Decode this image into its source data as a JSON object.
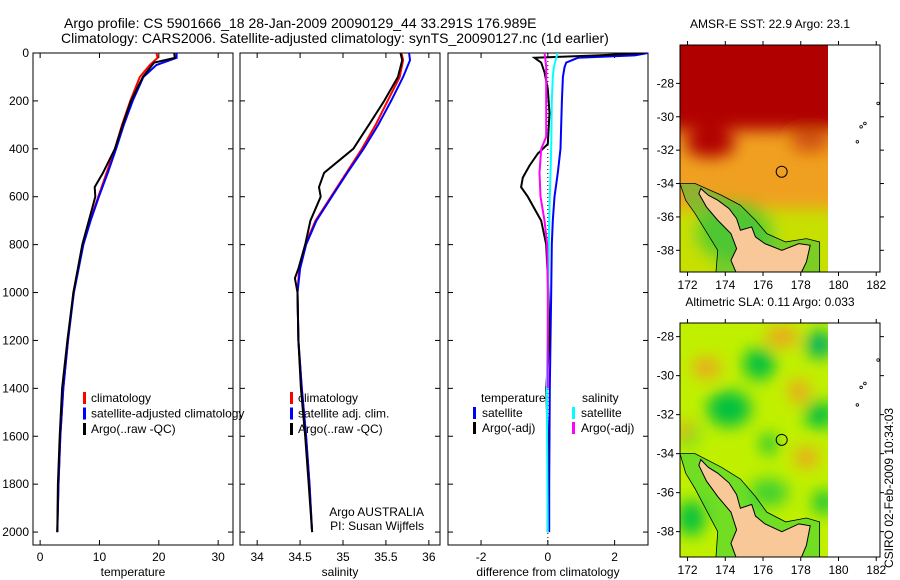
{
  "title": {
    "line1": "Argo profile: CS 5901666_18 28-Jan-2009 20090129_44 33.291S 176.989E",
    "line2": "Climatology: CARS2006. Satellite-adjusted climatology: synTS_20090127.nc (1d earlier)"
  },
  "chart_data": [
    {
      "type": "line",
      "xlabel": "temperature",
      "xlim": [
        -1.2,
        32.5
      ],
      "ylim": [
        0,
        2054
      ],
      "yreversed": true,
      "xticks": [
        0,
        10,
        20,
        30
      ],
      "yticks": [
        0,
        200,
        400,
        600,
        800,
        1000,
        1200,
        1400,
        1600,
        1800,
        2000
      ],
      "legend": [
        "climatology",
        "satellite-adjusted climatology",
        "Argo(..raw -QC)"
      ],
      "series": [
        {
          "name": "climatology",
          "color": "#ff0000",
          "depth": [
            0,
            20,
            50,
            100,
            200,
            300,
            400,
            500,
            600,
            700,
            800,
            1000,
            1200,
            1400,
            1600,
            1800,
            2000
          ],
          "values": [
            19.6,
            19.8,
            18.5,
            16.8,
            15.2,
            13.8,
            12.6,
            11.2,
            9.8,
            8.4,
            7.2,
            5.6,
            4.7,
            3.9,
            3.4,
            3.1,
            2.9
          ]
        },
        {
          "name": "satellite-adjusted climatology",
          "color": "#0000ff",
          "depth": [
            0,
            20,
            50,
            100,
            200,
            300,
            400,
            500,
            600,
            700,
            800,
            1000,
            1200,
            1400,
            1600,
            1800,
            2000
          ],
          "values": [
            23.0,
            23.0,
            19.6,
            17.4,
            15.6,
            14.1,
            12.8,
            11.4,
            9.9,
            8.5,
            7.3,
            5.7,
            4.7,
            3.9,
            3.4,
            3.1,
            2.9
          ]
        },
        {
          "name": "Argo(..raw -QC)",
          "color": "#000000",
          "depth": [
            0,
            20,
            40,
            100,
            200,
            300,
            400,
            500,
            560,
            600,
            700,
            800,
            1000,
            1200,
            1400,
            1600,
            1800,
            2000
          ],
          "values": [
            22.6,
            22.7,
            19.2,
            17.3,
            15.3,
            13.9,
            12.6,
            10.6,
            9.2,
            9.3,
            8.2,
            7.1,
            5.6,
            4.6,
            3.7,
            3.3,
            3.0,
            2.9
          ]
        }
      ]
    },
    {
      "type": "line",
      "xlabel": "salinity",
      "xlim": [
        33.8,
        36.13
      ],
      "ylim": [
        0,
        2054
      ],
      "yreversed": true,
      "xticks": [
        34,
        34.5,
        35,
        35.5,
        36
      ],
      "xticklabels": [
        "34",
        "34.5",
        "35",
        "35.5",
        "36"
      ],
      "legend": [
        "climatology",
        "satellite adj. clim.",
        "Argo(..raw -QC)"
      ],
      "annotation": [
        "Argo AUSTRALIA",
        "PI: Susan Wijffels"
      ],
      "series": [
        {
          "name": "climatology",
          "color": "#ff0000",
          "depth": [
            0,
            30,
            100,
            200,
            300,
            400,
            500,
            600,
            700,
            800,
            900,
            1000,
            1200,
            1400,
            1600,
            1800,
            2000
          ],
          "values": [
            35.68,
            35.7,
            35.66,
            35.52,
            35.38,
            35.22,
            35.04,
            34.86,
            34.68,
            34.56,
            34.49,
            34.47,
            34.48,
            34.52,
            34.57,
            34.61,
            34.64
          ]
        },
        {
          "name": "satellite adj. clim.",
          "color": "#0000ff",
          "depth": [
            0,
            30,
            100,
            200,
            300,
            400,
            500,
            600,
            700,
            800,
            900,
            1000,
            1200,
            1400,
            1600,
            1800,
            2000
          ],
          "values": [
            35.77,
            35.78,
            35.7,
            35.56,
            35.41,
            35.24,
            35.05,
            34.87,
            34.69,
            34.57,
            34.5,
            34.47,
            34.48,
            34.52,
            34.57,
            34.61,
            34.64
          ]
        },
        {
          "name": "Argo(..raw -QC)",
          "color": "#000000",
          "depth": [
            0,
            30,
            100,
            200,
            300,
            400,
            450,
            500,
            560,
            600,
            700,
            800,
            900,
            940,
            1000,
            1200,
            1400,
            1600,
            1800,
            2000
          ],
          "values": [
            35.67,
            35.69,
            35.64,
            35.48,
            35.3,
            35.12,
            34.95,
            34.78,
            34.72,
            34.74,
            34.62,
            34.56,
            34.48,
            34.44,
            34.47,
            34.48,
            34.51,
            34.56,
            34.6,
            34.64
          ]
        }
      ]
    },
    {
      "type": "line",
      "xlabel": "difference from climatology",
      "xlim": [
        -2.99,
        3.0
      ],
      "ylim": [
        0,
        2054
      ],
      "yreversed": true,
      "xticks": [
        -2,
        0,
        2
      ],
      "legend_headers": [
        "temperature",
        "salinity"
      ],
      "legend": [
        "satellite",
        "Argo(-adj)",
        "satellite",
        "Argo(-adj)"
      ],
      "series": [
        {
          "name": "temperature satellite",
          "color": "#0000ff",
          "depth": [
            0,
            10,
            20,
            40,
            60,
            100,
            200,
            300,
            400,
            500,
            600,
            700,
            800,
            1000,
            1200,
            1400,
            1600,
            1800,
            2000
          ],
          "values": [
            3.0,
            2.6,
            0.9,
            0.55,
            0.5,
            0.45,
            0.42,
            0.4,
            0.38,
            0.3,
            0.2,
            0.15,
            0.12,
            0.1,
            0.08,
            0.06,
            0.05,
            0.04,
            0.04
          ]
        },
        {
          "name": "temperature Argo(-adj)",
          "color": "#000000",
          "depth": [
            0,
            10,
            20,
            40,
            80,
            150,
            250,
            380,
            420,
            470,
            520,
            560,
            600,
            650,
            700,
            800,
            1000,
            1200,
            1400,
            1600,
            1800,
            2000
          ],
          "values": [
            2.9,
            1.5,
            -0.4,
            -0.2,
            -0.1,
            0.0,
            0.05,
            0.0,
            -0.3,
            -0.55,
            -0.75,
            -0.8,
            -0.6,
            -0.4,
            -0.2,
            -0.05,
            0.02,
            0.05,
            -0.05,
            0.0,
            0.0,
            0.0
          ]
        },
        {
          "name": "salinity satellite",
          "color": "#00ffff",
          "depth": [
            0,
            20,
            60,
            100,
            200,
            400,
            600,
            800,
            1000,
            1400,
            2000
          ],
          "values": [
            0.3,
            0.25,
            0.18,
            0.15,
            0.12,
            0.1,
            0.06,
            0.03,
            0.01,
            -0.03,
            0.0
          ]
        },
        {
          "name": "salinity Argo(-adj)",
          "color": "#ff00ff",
          "depth": [
            0,
            20,
            60,
            100,
            200,
            350,
            400,
            500,
            600,
            700,
            800,
            1000,
            1200,
            1400
          ],
          "values": [
            -0.1,
            -0.08,
            -0.05,
            -0.05,
            -0.05,
            -0.05,
            -0.2,
            -0.25,
            -0.22,
            -0.1,
            -0.02,
            0.0,
            0.0,
            0.0
          ]
        }
      ]
    }
  ],
  "maps": [
    {
      "title": "AMSR-E SST: 22.9 Argo: 23.1",
      "lonlim": [
        171.6,
        182.2
      ],
      "latlim": [
        -39.3,
        -25.7
      ],
      "lon_ticks": [
        172,
        174,
        176,
        178,
        180,
        182
      ],
      "lat_ticks": [
        -28,
        -30,
        -32,
        -34,
        -36,
        -38
      ],
      "colors": {
        "high": "#b00000",
        "mid": "#f0a020",
        "low": "#c8e000"
      }
    },
    {
      "title": "Altimetric SLA: 0.11 Argo: 0.033",
      "lonlim": [
        171.6,
        182.2
      ],
      "latlim": [
        -39.3,
        -27.3
      ],
      "lon_ticks": [
        172,
        174,
        176,
        178,
        180,
        182
      ],
      "lat_ticks": [
        -28,
        -30,
        -32,
        -34,
        -36,
        -38
      ],
      "colors": {
        "high": "#f0a020",
        "mid": "#e8f000",
        "low": "#00c040"
      }
    }
  ],
  "argo_position": {
    "lon": 176.989,
    "lat": -33.291
  },
  "stamp": "CSIRO 02-Feb-2009 10:34:03"
}
